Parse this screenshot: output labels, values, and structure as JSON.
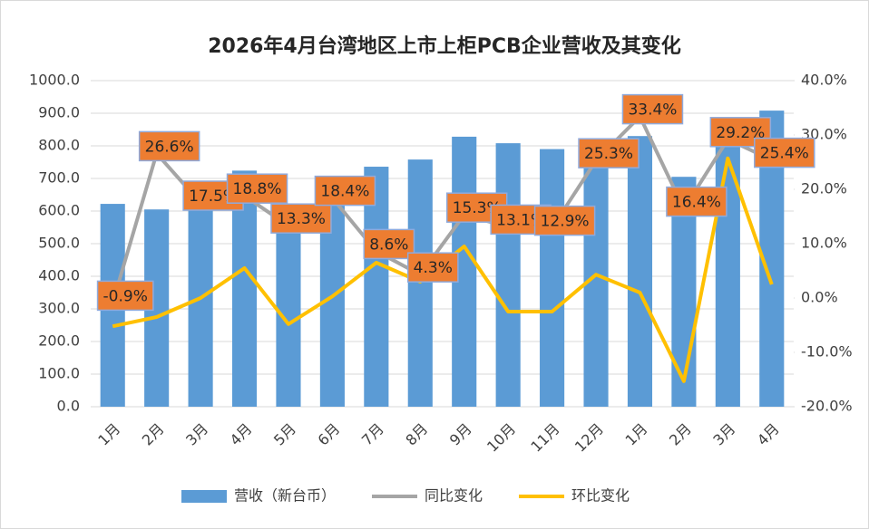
{
  "chart_data": {
    "type": "bar",
    "title": "2026年4月台湾地区上市上柜PCB企业营收及其变化",
    "categories": [
      "1月",
      "2月",
      "3月",
      "4月",
      "5月",
      "6月",
      "7月",
      "8月",
      "9月",
      "10月",
      "11月",
      "12月",
      "1月",
      "2月",
      "3月",
      "4月"
    ],
    "ylim": [
      0,
      1000
    ],
    "yticks": [
      {
        "value": 0,
        "label": "0.0"
      },
      {
        "value": 100,
        "label": "100.0"
      },
      {
        "value": 200,
        "label": "200.0"
      },
      {
        "value": 300,
        "label": "300.0"
      },
      {
        "value": 400,
        "label": "400.0"
      },
      {
        "value": 500,
        "label": "500.0"
      },
      {
        "value": 600,
        "label": "600.0"
      },
      {
        "value": 700,
        "label": "700.0"
      },
      {
        "value": 800,
        "label": "800.0"
      },
      {
        "value": 900,
        "label": "900.0"
      },
      {
        "value": 1000,
        "label": "1000.0"
      }
    ],
    "y2lim": [
      -20,
      40
    ],
    "y2ticks": [
      {
        "value": -20,
        "label": "-20.0%"
      },
      {
        "value": -10,
        "label": "-10.0%"
      },
      {
        "value": 0,
        "label": "0.0%"
      },
      {
        "value": 10,
        "label": "10.0%"
      },
      {
        "value": 20,
        "label": "20.0%"
      },
      {
        "value": 30,
        "label": "30.0%"
      },
      {
        "value": 40,
        "label": "40.0%"
      }
    ],
    "grid": true,
    "legend": "bottom",
    "series": [
      {
        "name": "营收（新台币）",
        "type": "bar",
        "color": "#5b9bd5",
        "values": [
          622,
          605,
          686,
          724,
          588,
          690,
          736,
          758,
          828,
          808,
          790,
          822,
          830,
          705,
          885,
          908
        ]
      },
      {
        "name": "同比变化",
        "type": "line",
        "axis": "y2",
        "color": "#a5a5a5",
        "values": [
          -0.9,
          26.6,
          17.5,
          18.8,
          13.3,
          18.4,
          8.6,
          4.3,
          15.3,
          13.1,
          12.9,
          25.3,
          33.4,
          16.4,
          29.2,
          25.4
        ],
        "value_labels": [
          "-0.9%",
          "26.6%",
          "17.5%",
          "18.8%",
          "13.3%",
          "18.4%",
          "8.6%",
          "4.3%",
          "15.3%",
          "13.1%",
          "12.9%",
          "25.3%",
          "33.4%",
          "16.4%",
          "29.2%",
          "25.4%"
        ]
      },
      {
        "name": "环比变化",
        "type": "line",
        "axis": "y2",
        "color": "#ffc000",
        "values": [
          -5.2,
          -3.5,
          0,
          5.5,
          -4.8,
          0.3,
          6.5,
          3,
          9.5,
          -2.5,
          -2.5,
          4.3,
          1,
          -15.3,
          25.7,
          2.5
        ]
      }
    ]
  }
}
